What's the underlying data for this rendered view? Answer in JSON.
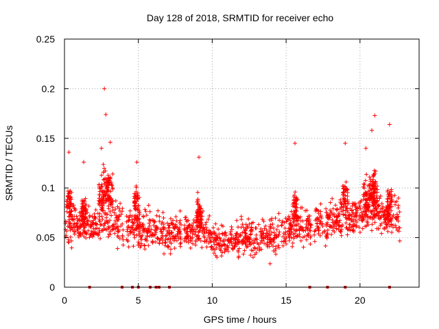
{
  "chart_data": {
    "type": "scatter",
    "title": "Day 128 of 2018, SRMTID for receiver echo",
    "xlabel": "GPS time / hours",
    "ylabel": "SRMTID / TECUs",
    "xlim": [
      0,
      24
    ],
    "ylim": [
      0,
      0.25
    ],
    "xticks": [
      "0",
      "5",
      "10",
      "15",
      "20"
    ],
    "yticks": [
      "0",
      "0.05",
      "0.1",
      "0.15",
      "0.2",
      "0.25"
    ],
    "grid": true,
    "marker": "+",
    "color": "#ff0000",
    "gap_color": "#cc0000",
    "bursts": [
      {
        "t": 0.3,
        "mean": 0.085,
        "spread": 0.025,
        "peak": 0.136
      },
      {
        "t": 1.3,
        "mean": 0.075,
        "spread": 0.025,
        "peak": 0.126
      },
      {
        "t": 2.5,
        "mean": 0.09,
        "spread": 0.03,
        "peak": 0.14
      },
      {
        "t": 2.8,
        "mean": 0.1,
        "spread": 0.035,
        "peak": 0.174
      },
      {
        "t": 3.1,
        "mean": 0.095,
        "spread": 0.03,
        "peak": 0.146
      },
      {
        "t": 4.9,
        "mean": 0.085,
        "spread": 0.025,
        "peak": 0.126
      },
      {
        "t": 9.1,
        "mean": 0.075,
        "spread": 0.025,
        "peak": 0.131
      },
      {
        "t": 15.6,
        "mean": 0.08,
        "spread": 0.03,
        "peak": 0.145
      },
      {
        "t": 19.0,
        "mean": 0.09,
        "spread": 0.03,
        "peak": 0.145
      },
      {
        "t": 20.4,
        "mean": 0.09,
        "spread": 0.03,
        "peak": 0.14
      },
      {
        "t": 20.8,
        "mean": 0.095,
        "spread": 0.03,
        "peak": 0.158
      },
      {
        "t": 21.0,
        "mean": 0.1,
        "spread": 0.035,
        "peak": 0.173
      },
      {
        "t": 22.0,
        "mean": 0.085,
        "spread": 0.03,
        "peak": 0.164
      }
    ],
    "outlier": {
      "t": 2.7,
      "value": 0.2
    },
    "baseline": [
      {
        "t": 0,
        "value": 0.06
      },
      {
        "t": 3,
        "value": 0.065
      },
      {
        "t": 5,
        "value": 0.058
      },
      {
        "t": 7,
        "value": 0.055
      },
      {
        "t": 9,
        "value": 0.06
      },
      {
        "t": 10.5,
        "value": 0.045
      },
      {
        "t": 12,
        "value": 0.05
      },
      {
        "t": 14,
        "value": 0.05
      },
      {
        "t": 15.5,
        "value": 0.06
      },
      {
        "t": 17,
        "value": 0.065
      },
      {
        "t": 19,
        "value": 0.07
      },
      {
        "t": 21,
        "value": 0.075
      },
      {
        "t": 22.7,
        "value": 0.068
      }
    ],
    "data_range": [
      0,
      22.7
    ],
    "zero_markers": [
      1.7,
      3.9,
      4.6,
      5.0,
      5.8,
      6.2,
      6.4,
      7.1,
      16.6,
      17.8,
      19.0,
      22.0
    ],
    "data_gaps": [
      [
        4.0,
        4.2
      ],
      [
        7.9,
        8.1
      ],
      [
        16.7,
        16.9
      ],
      [
        17.5,
        17.6
      ],
      [
        18.9,
        19.0
      ]
    ]
  }
}
